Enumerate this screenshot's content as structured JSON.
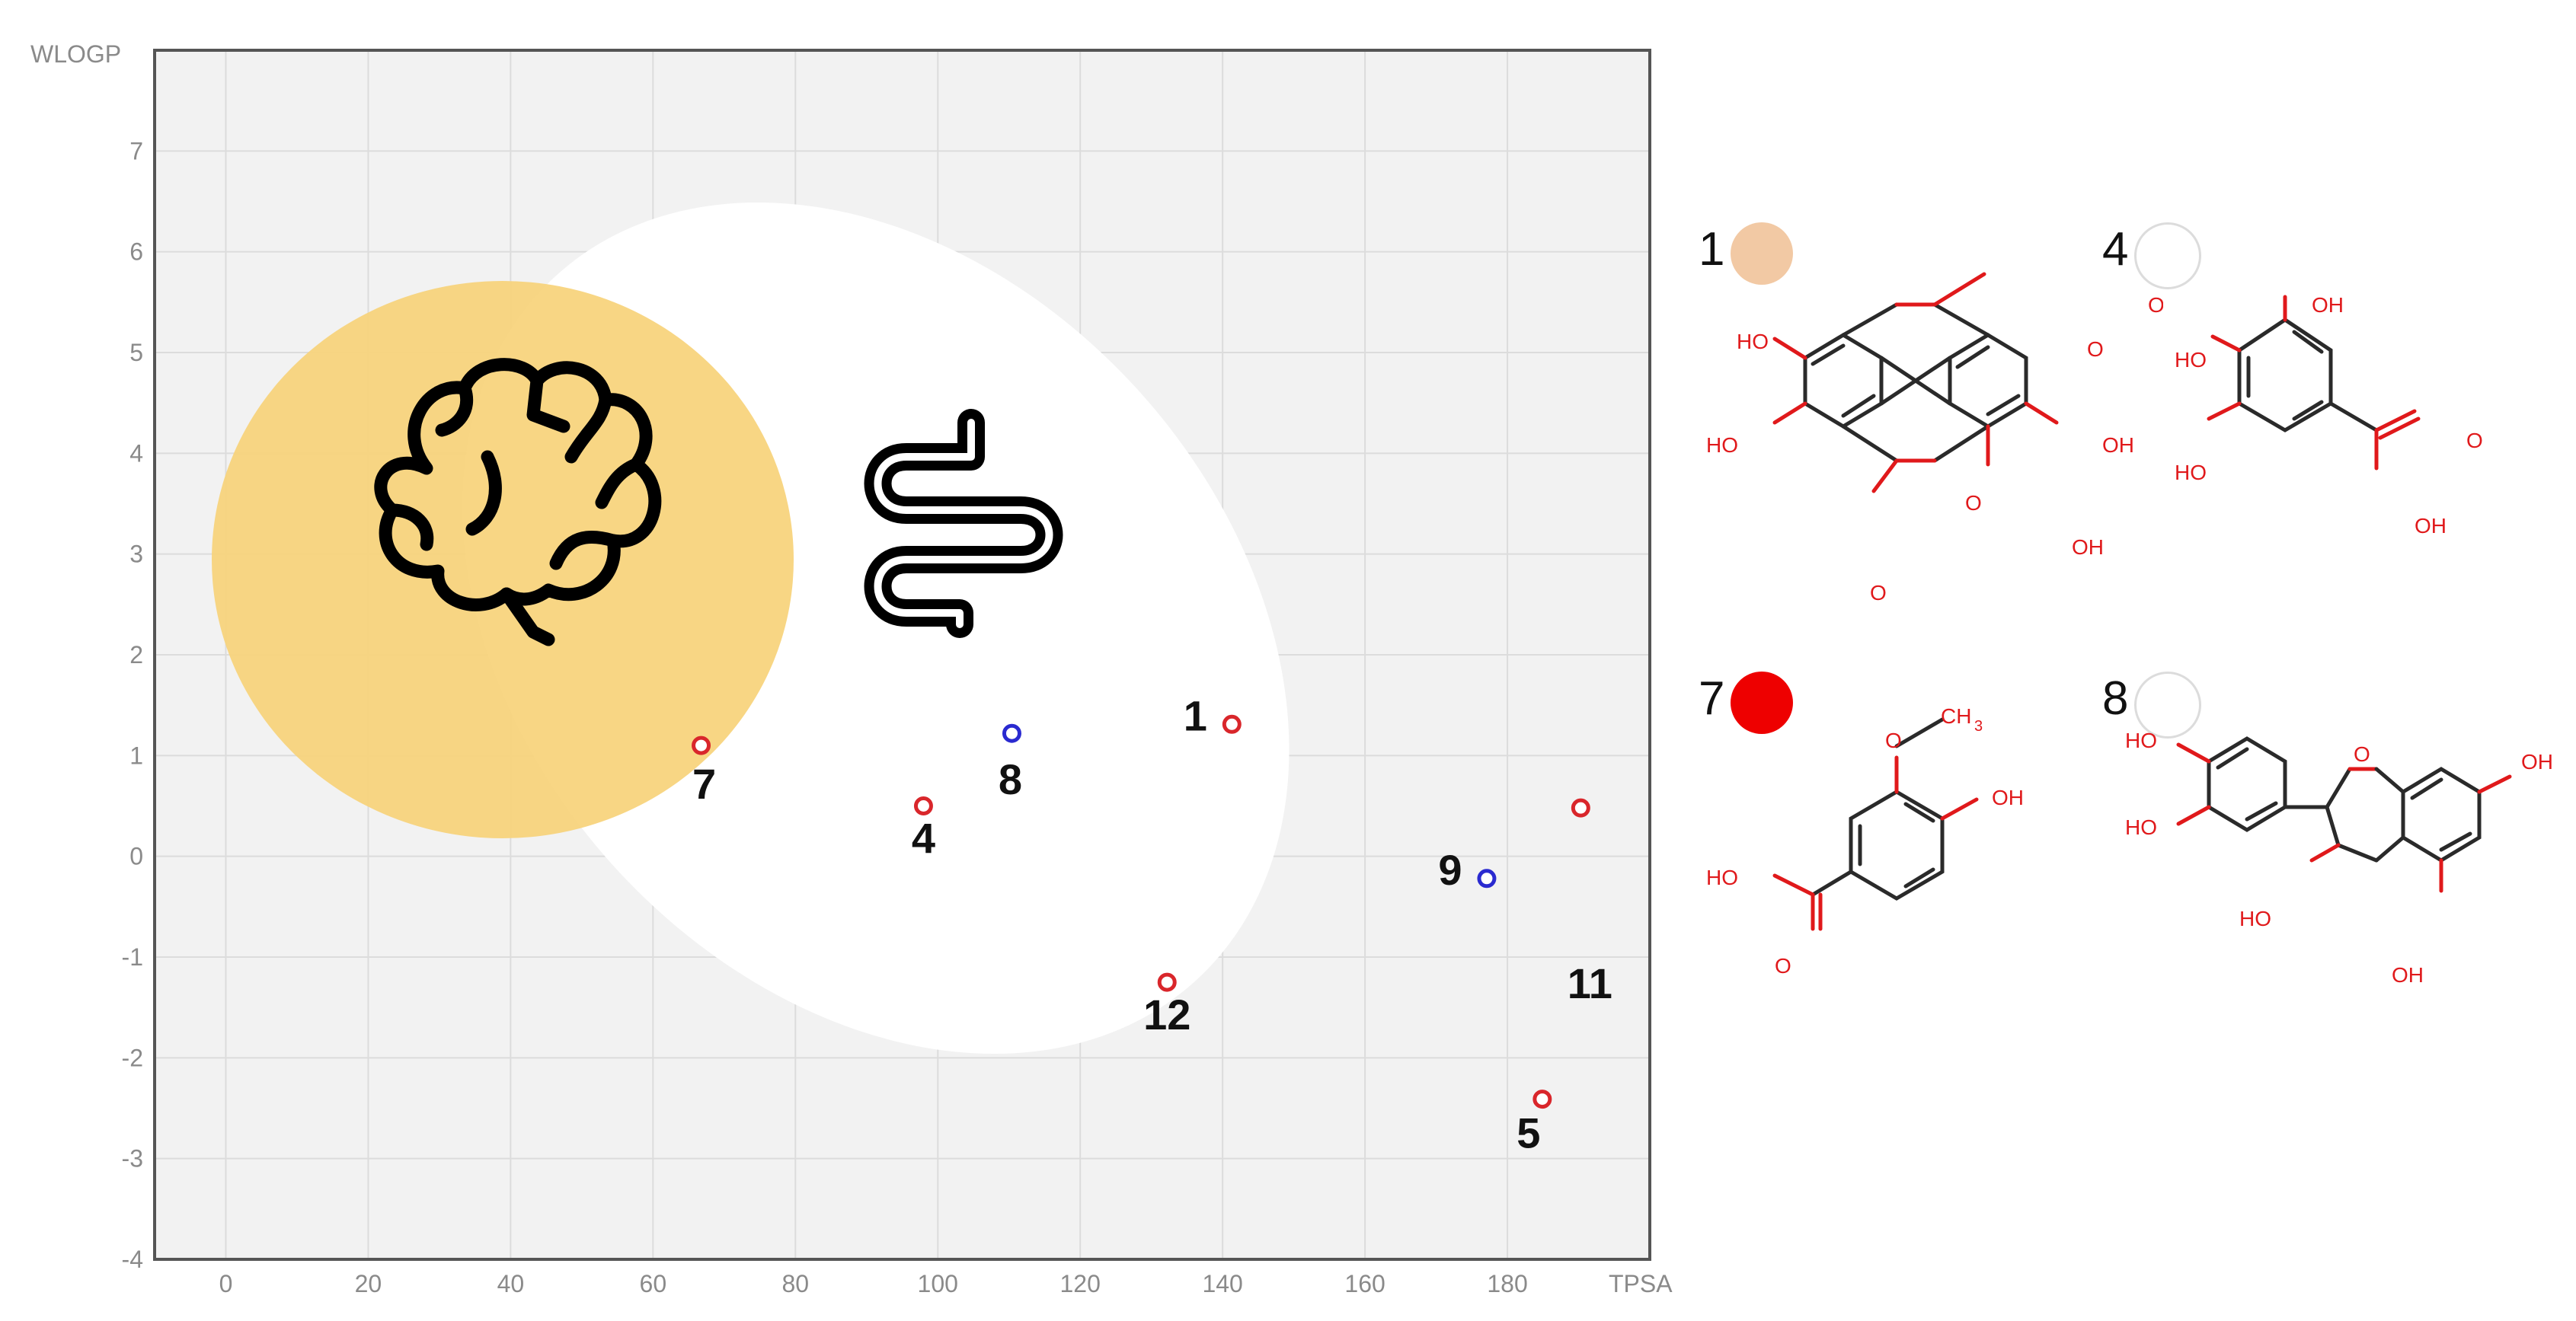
{
  "chart_data": {
    "type": "scatter",
    "title": "",
    "xlabel": "TPSA",
    "ylabel": "WLOGP",
    "xlim": [
      -10,
      200
    ],
    "ylim": [
      -4,
      8
    ],
    "x_ticks": [
      0,
      20,
      40,
      60,
      80,
      100,
      120,
      140,
      160,
      180
    ],
    "y_ticks": [
      -4,
      -3,
      -2,
      -1,
      0,
      1,
      2,
      3,
      4,
      5,
      6,
      7
    ],
    "grid": true,
    "regions": [
      {
        "name": "white",
        "shape": "ellipse",
        "color": "#ffffff"
      },
      {
        "name": "yolk",
        "shape": "ellipse",
        "color": "#f7d27a"
      }
    ],
    "points": [
      {
        "label": "1",
        "x": 141.3,
        "y": 1.31,
        "color": "#d9262b"
      },
      {
        "label": "4",
        "x": 97.99,
        "y": 0.5,
        "color": "#d9262b"
      },
      {
        "label": "5",
        "x": 184.9,
        "y": -2.41,
        "color": "#d9262b"
      },
      {
        "label": "7",
        "x": 66.76,
        "y": 1.1,
        "color": "#d9262b"
      },
      {
        "label": "8",
        "x": 110.4,
        "y": 1.22,
        "color": "#2a2ad0"
      },
      {
        "label": "9",
        "x": 177.1,
        "y": -0.22,
        "color": "#2a2ad0"
      },
      {
        "label": "11",
        "x": 190.3,
        "y": 0.48,
        "color": "#d9262b"
      },
      {
        "label": "12",
        "x": 132.2,
        "y": -1.25,
        "color": "#d9262b"
      }
    ]
  },
  "icons": {
    "brain": "brain-icon",
    "intestine": "intestine-icon"
  },
  "molecules": [
    {
      "id": "1",
      "dot_color": "#f2c9a4",
      "labels": {
        "ho1": "HO",
        "ho2": "HO",
        "oh1": "OH",
        "oh2": "OH",
        "o1": "O",
        "o2": "O",
        "o3": "O",
        "o4": "O"
      }
    },
    {
      "id": "4",
      "dot_color": "#ffffff",
      "labels": {
        "oh_top": "OH",
        "ho1": "HO",
        "ho2": "HO",
        "o": "O",
        "oh": "OH"
      }
    },
    {
      "id": "7",
      "dot_color": "#ee0000",
      "labels": {
        "o": "O",
        "ch3": "CH",
        "ch3_sub": "3",
        "oh": "OH",
        "ho": "HO",
        "o2": "O"
      }
    },
    {
      "id": "8",
      "dot_color": "#ffffff",
      "labels": {
        "ho1": "HO",
        "ho2": "HO",
        "o": "O",
        "oh1": "OH",
        "ho3": "HO",
        "oh2": "OH"
      }
    }
  ]
}
